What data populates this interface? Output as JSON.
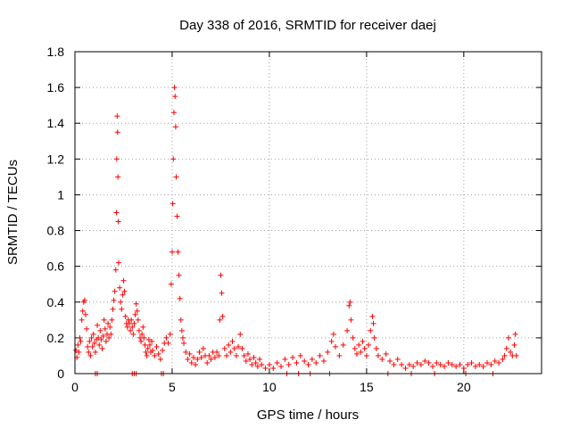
{
  "chart_data": {
    "type": "scatter",
    "title": "Day 338 of 2016, SRMTID for receiver daej",
    "xlabel": "GPS time / hours",
    "ylabel": "SRMTID / TECUs",
    "xlim": [
      0,
      24
    ],
    "ylim": [
      0,
      1.8
    ],
    "grid": true,
    "xticks": [
      0,
      5,
      10,
      15,
      20
    ],
    "yticks": [
      0,
      0.2,
      0.4,
      0.6,
      0.8,
      1,
      1.2,
      1.4,
      1.6,
      1.8
    ],
    "xtick_labels": [
      "0",
      "5",
      "10",
      "15",
      "20"
    ],
    "ytick_labels": [
      "0",
      "0.2",
      "0.4",
      "0.6",
      "0.8",
      "1",
      "1.2",
      "1.4",
      "1.6",
      "1.8"
    ],
    "marker": "+",
    "color": "#ff0000",
    "series": [
      {
        "name": "SRMTID",
        "points": [
          [
            0.05,
            0.13
          ],
          [
            0.1,
            0.09
          ],
          [
            0.15,
            0.16
          ],
          [
            0.2,
            0.12
          ],
          [
            0.25,
            0.2
          ],
          [
            0.3,
            0.18
          ],
          [
            0.35,
            0.3
          ],
          [
            0.4,
            0.35
          ],
          [
            0.45,
            0.4
          ],
          [
            0.5,
            0.41
          ],
          [
            0.55,
            0.33
          ],
          [
            0.6,
            0.25
          ],
          [
            0.65,
            0.15
          ],
          [
            0.7,
            0.12
          ],
          [
            0.75,
            0.18
          ],
          [
            0.8,
            0.1
          ],
          [
            0.85,
            0.2
          ],
          [
            0.9,
            0.15
          ],
          [
            0.95,
            0.22
          ],
          [
            1.0,
            0.17
          ],
          [
            1.05,
            0.12
          ],
          [
            1.1,
            0.19
          ],
          [
            1.15,
            0.27
          ],
          [
            1.2,
            0.2
          ],
          [
            1.25,
            0.16
          ],
          [
            1.3,
            0.24
          ],
          [
            1.35,
            0.19
          ],
          [
            1.4,
            0.14
          ],
          [
            1.45,
            0.21
          ],
          [
            1.5,
            0.3
          ],
          [
            1.55,
            0.25
          ],
          [
            1.6,
            0.18
          ],
          [
            1.65,
            0.22
          ],
          [
            1.7,
            0.28
          ],
          [
            1.75,
            0.2
          ],
          [
            1.8,
            0.26
          ],
          [
            1.85,
            0.22
          ],
          [
            1.9,
            0.3
          ],
          [
            1.95,
            0.36
          ],
          [
            2.0,
            0.41
          ],
          [
            2.05,
            0.46
          ],
          [
            2.1,
            0.58
          ],
          [
            2.13,
            0.9
          ],
          [
            2.15,
            1.2
          ],
          [
            2.17,
            1.44
          ],
          [
            2.19,
            1.35
          ],
          [
            2.21,
            1.1
          ],
          [
            2.23,
            0.85
          ],
          [
            2.25,
            0.62
          ],
          [
            2.3,
            0.48
          ],
          [
            2.35,
            0.4
          ],
          [
            2.4,
            0.36
          ],
          [
            2.45,
            0.44
          ],
          [
            2.5,
            0.52
          ],
          [
            2.55,
            0.46
          ],
          [
            2.6,
            0.32
          ],
          [
            2.65,
            0.28
          ],
          [
            2.7,
            0.26
          ],
          [
            2.75,
            0.3
          ],
          [
            2.8,
            0.28
          ],
          [
            2.85,
            0.24
          ],
          [
            2.9,
            0.3
          ],
          [
            2.95,
            0.26
          ],
          [
            3.0,
            0.22
          ],
          [
            3.05,
            0.28
          ],
          [
            3.1,
            0.33
          ],
          [
            3.15,
            0.39
          ],
          [
            3.2,
            0.35
          ],
          [
            3.25,
            0.3
          ],
          [
            3.3,
            0.24
          ],
          [
            3.35,
            0.2
          ],
          [
            3.4,
            0.18
          ],
          [
            3.45,
            0.22
          ],
          [
            3.5,
            0.26
          ],
          [
            3.55,
            0.2
          ],
          [
            3.6,
            0.16
          ],
          [
            3.65,
            0.12
          ],
          [
            3.7,
            0.1
          ],
          [
            3.75,
            0.14
          ],
          [
            3.8,
            0.19
          ],
          [
            3.85,
            0.16
          ],
          [
            3.9,
            0.12
          ],
          [
            3.95,
            0.18
          ],
          [
            4.0,
            0.13
          ],
          [
            4.1,
            0.1
          ],
          [
            4.2,
            0.15
          ],
          [
            4.3,
            0.11
          ],
          [
            4.4,
            0.08
          ],
          [
            4.5,
            0.13
          ],
          [
            4.6,
            0.17
          ],
          [
            4.7,
            0.2
          ],
          [
            4.8,
            0.17
          ],
          [
            4.9,
            0.22
          ],
          [
            4.95,
            0.5
          ],
          [
            5.0,
            0.68
          ],
          [
            5.03,
            0.95
          ],
          [
            5.06,
            1.2
          ],
          [
            5.09,
            1.46
          ],
          [
            5.12,
            1.6
          ],
          [
            5.15,
            1.55
          ],
          [
            5.18,
            1.38
          ],
          [
            5.21,
            1.1
          ],
          [
            5.25,
            0.88
          ],
          [
            5.3,
            0.68
          ],
          [
            5.35,
            0.55
          ],
          [
            5.4,
            0.42
          ],
          [
            5.45,
            0.3
          ],
          [
            5.5,
            0.24
          ],
          [
            5.55,
            0.2
          ],
          [
            5.6,
            0.17
          ],
          [
            5.7,
            0.12
          ],
          [
            5.8,
            0.08
          ],
          [
            5.9,
            0.11
          ],
          [
            6.0,
            0.06
          ],
          [
            6.1,
            0.09
          ],
          [
            6.2,
            0.05
          ],
          [
            6.3,
            0.08
          ],
          [
            6.4,
            0.12
          ],
          [
            6.5,
            0.09
          ],
          [
            6.6,
            0.14
          ],
          [
            6.7,
            0.1
          ],
          [
            6.8,
            0.06
          ],
          [
            6.9,
            0.1
          ],
          [
            7.0,
            0.08
          ],
          [
            7.1,
            0.12
          ],
          [
            7.2,
            0.09
          ],
          [
            7.3,
            0.12
          ],
          [
            7.4,
            0.1
          ],
          [
            7.45,
            0.3
          ],
          [
            7.5,
            0.55
          ],
          [
            7.55,
            0.45
          ],
          [
            7.6,
            0.32
          ],
          [
            7.7,
            0.14
          ],
          [
            7.8,
            0.1
          ],
          [
            7.9,
            0.16
          ],
          [
            8.0,
            0.12
          ],
          [
            8.1,
            0.18
          ],
          [
            8.2,
            0.14
          ],
          [
            8.3,
            0.1
          ],
          [
            8.4,
            0.15
          ],
          [
            8.5,
            0.22
          ],
          [
            8.6,
            0.14
          ],
          [
            8.7,
            0.1
          ],
          [
            8.8,
            0.07
          ],
          [
            8.9,
            0.11
          ],
          [
            9.0,
            0.08
          ],
          [
            9.1,
            0.05
          ],
          [
            9.2,
            0.09
          ],
          [
            9.3,
            0.06
          ],
          [
            9.4,
            0.04
          ],
          [
            9.5,
            0.08
          ],
          [
            9.6,
            0.05
          ],
          [
            9.8,
            0.03
          ],
          [
            10.0,
            0.05
          ],
          [
            10.2,
            0.03
          ],
          [
            10.4,
            0.06
          ],
          [
            10.6,
            0.04
          ],
          [
            10.8,
            0.08
          ],
          [
            11.0,
            0.05
          ],
          [
            11.2,
            0.09
          ],
          [
            11.4,
            0.06
          ],
          [
            11.6,
            0.1
          ],
          [
            11.8,
            0.07
          ],
          [
            12.0,
            0.05
          ],
          [
            12.2,
            0.08
          ],
          [
            12.4,
            0.06
          ],
          [
            12.6,
            0.1
          ],
          [
            12.8,
            0.07
          ],
          [
            13.0,
            0.12
          ],
          [
            13.2,
            0.18
          ],
          [
            13.3,
            0.22
          ],
          [
            13.4,
            0.15
          ],
          [
            13.6,
            0.1
          ],
          [
            13.8,
            0.16
          ],
          [
            14.0,
            0.24
          ],
          [
            14.1,
            0.38
          ],
          [
            14.15,
            0.4
          ],
          [
            14.2,
            0.3
          ],
          [
            14.3,
            0.2
          ],
          [
            14.4,
            0.14
          ],
          [
            14.5,
            0.11
          ],
          [
            14.6,
            0.16
          ],
          [
            14.7,
            0.12
          ],
          [
            14.8,
            0.18
          ],
          [
            14.9,
            0.14
          ],
          [
            15.0,
            0.1
          ],
          [
            15.1,
            0.16
          ],
          [
            15.2,
            0.24
          ],
          [
            15.3,
            0.32
          ],
          [
            15.35,
            0.28
          ],
          [
            15.4,
            0.2
          ],
          [
            15.5,
            0.14
          ],
          [
            15.6,
            0.1
          ],
          [
            15.8,
            0.08
          ],
          [
            16.0,
            0.11
          ],
          [
            16.2,
            0.07
          ],
          [
            16.4,
            0.05
          ],
          [
            16.6,
            0.08
          ],
          [
            16.8,
            0.05
          ],
          [
            17.0,
            0.03
          ],
          [
            17.2,
            0.05
          ],
          [
            17.4,
            0.04
          ],
          [
            17.6,
            0.06
          ],
          [
            17.8,
            0.05
          ],
          [
            18.0,
            0.07
          ],
          [
            18.2,
            0.06
          ],
          [
            18.4,
            0.04
          ],
          [
            18.6,
            0.06
          ],
          [
            18.8,
            0.05
          ],
          [
            19.0,
            0.04
          ],
          [
            19.2,
            0.06
          ],
          [
            19.4,
            0.05
          ],
          [
            19.6,
            0.04
          ],
          [
            19.8,
            0.05
          ],
          [
            20.0,
            0.03
          ],
          [
            20.2,
            0.05
          ],
          [
            20.4,
            0.06
          ],
          [
            20.6,
            0.04
          ],
          [
            20.8,
            0.05
          ],
          [
            21.0,
            0.04
          ],
          [
            21.2,
            0.06
          ],
          [
            21.4,
            0.05
          ],
          [
            21.6,
            0.07
          ],
          [
            21.8,
            0.06
          ],
          [
            22.0,
            0.08
          ],
          [
            22.1,
            0.1
          ],
          [
            22.2,
            0.14
          ],
          [
            22.3,
            0.2
          ],
          [
            22.4,
            0.12
          ],
          [
            22.5,
            0.1
          ],
          [
            22.6,
            0.16
          ],
          [
            22.65,
            0.22
          ],
          [
            22.7,
            0.1
          ],
          [
            1.05,
            0.0
          ],
          [
            1.15,
            0.0
          ],
          [
            2.95,
            0.0
          ],
          [
            3.05,
            0.0
          ],
          [
            3.15,
            0.0
          ],
          [
            4.45,
            0.0
          ],
          [
            4.55,
            0.0
          ],
          [
            10.9,
            0.0
          ],
          [
            11.5,
            0.0
          ],
          [
            12.1,
            0.0
          ],
          [
            13.1,
            0.0
          ],
          [
            16.1,
            0.0
          ],
          [
            17.3,
            0.0
          ],
          [
            18.5,
            0.0
          ],
          [
            20.1,
            0.0
          ],
          [
            21.5,
            0.0
          ]
        ]
      }
    ]
  }
}
